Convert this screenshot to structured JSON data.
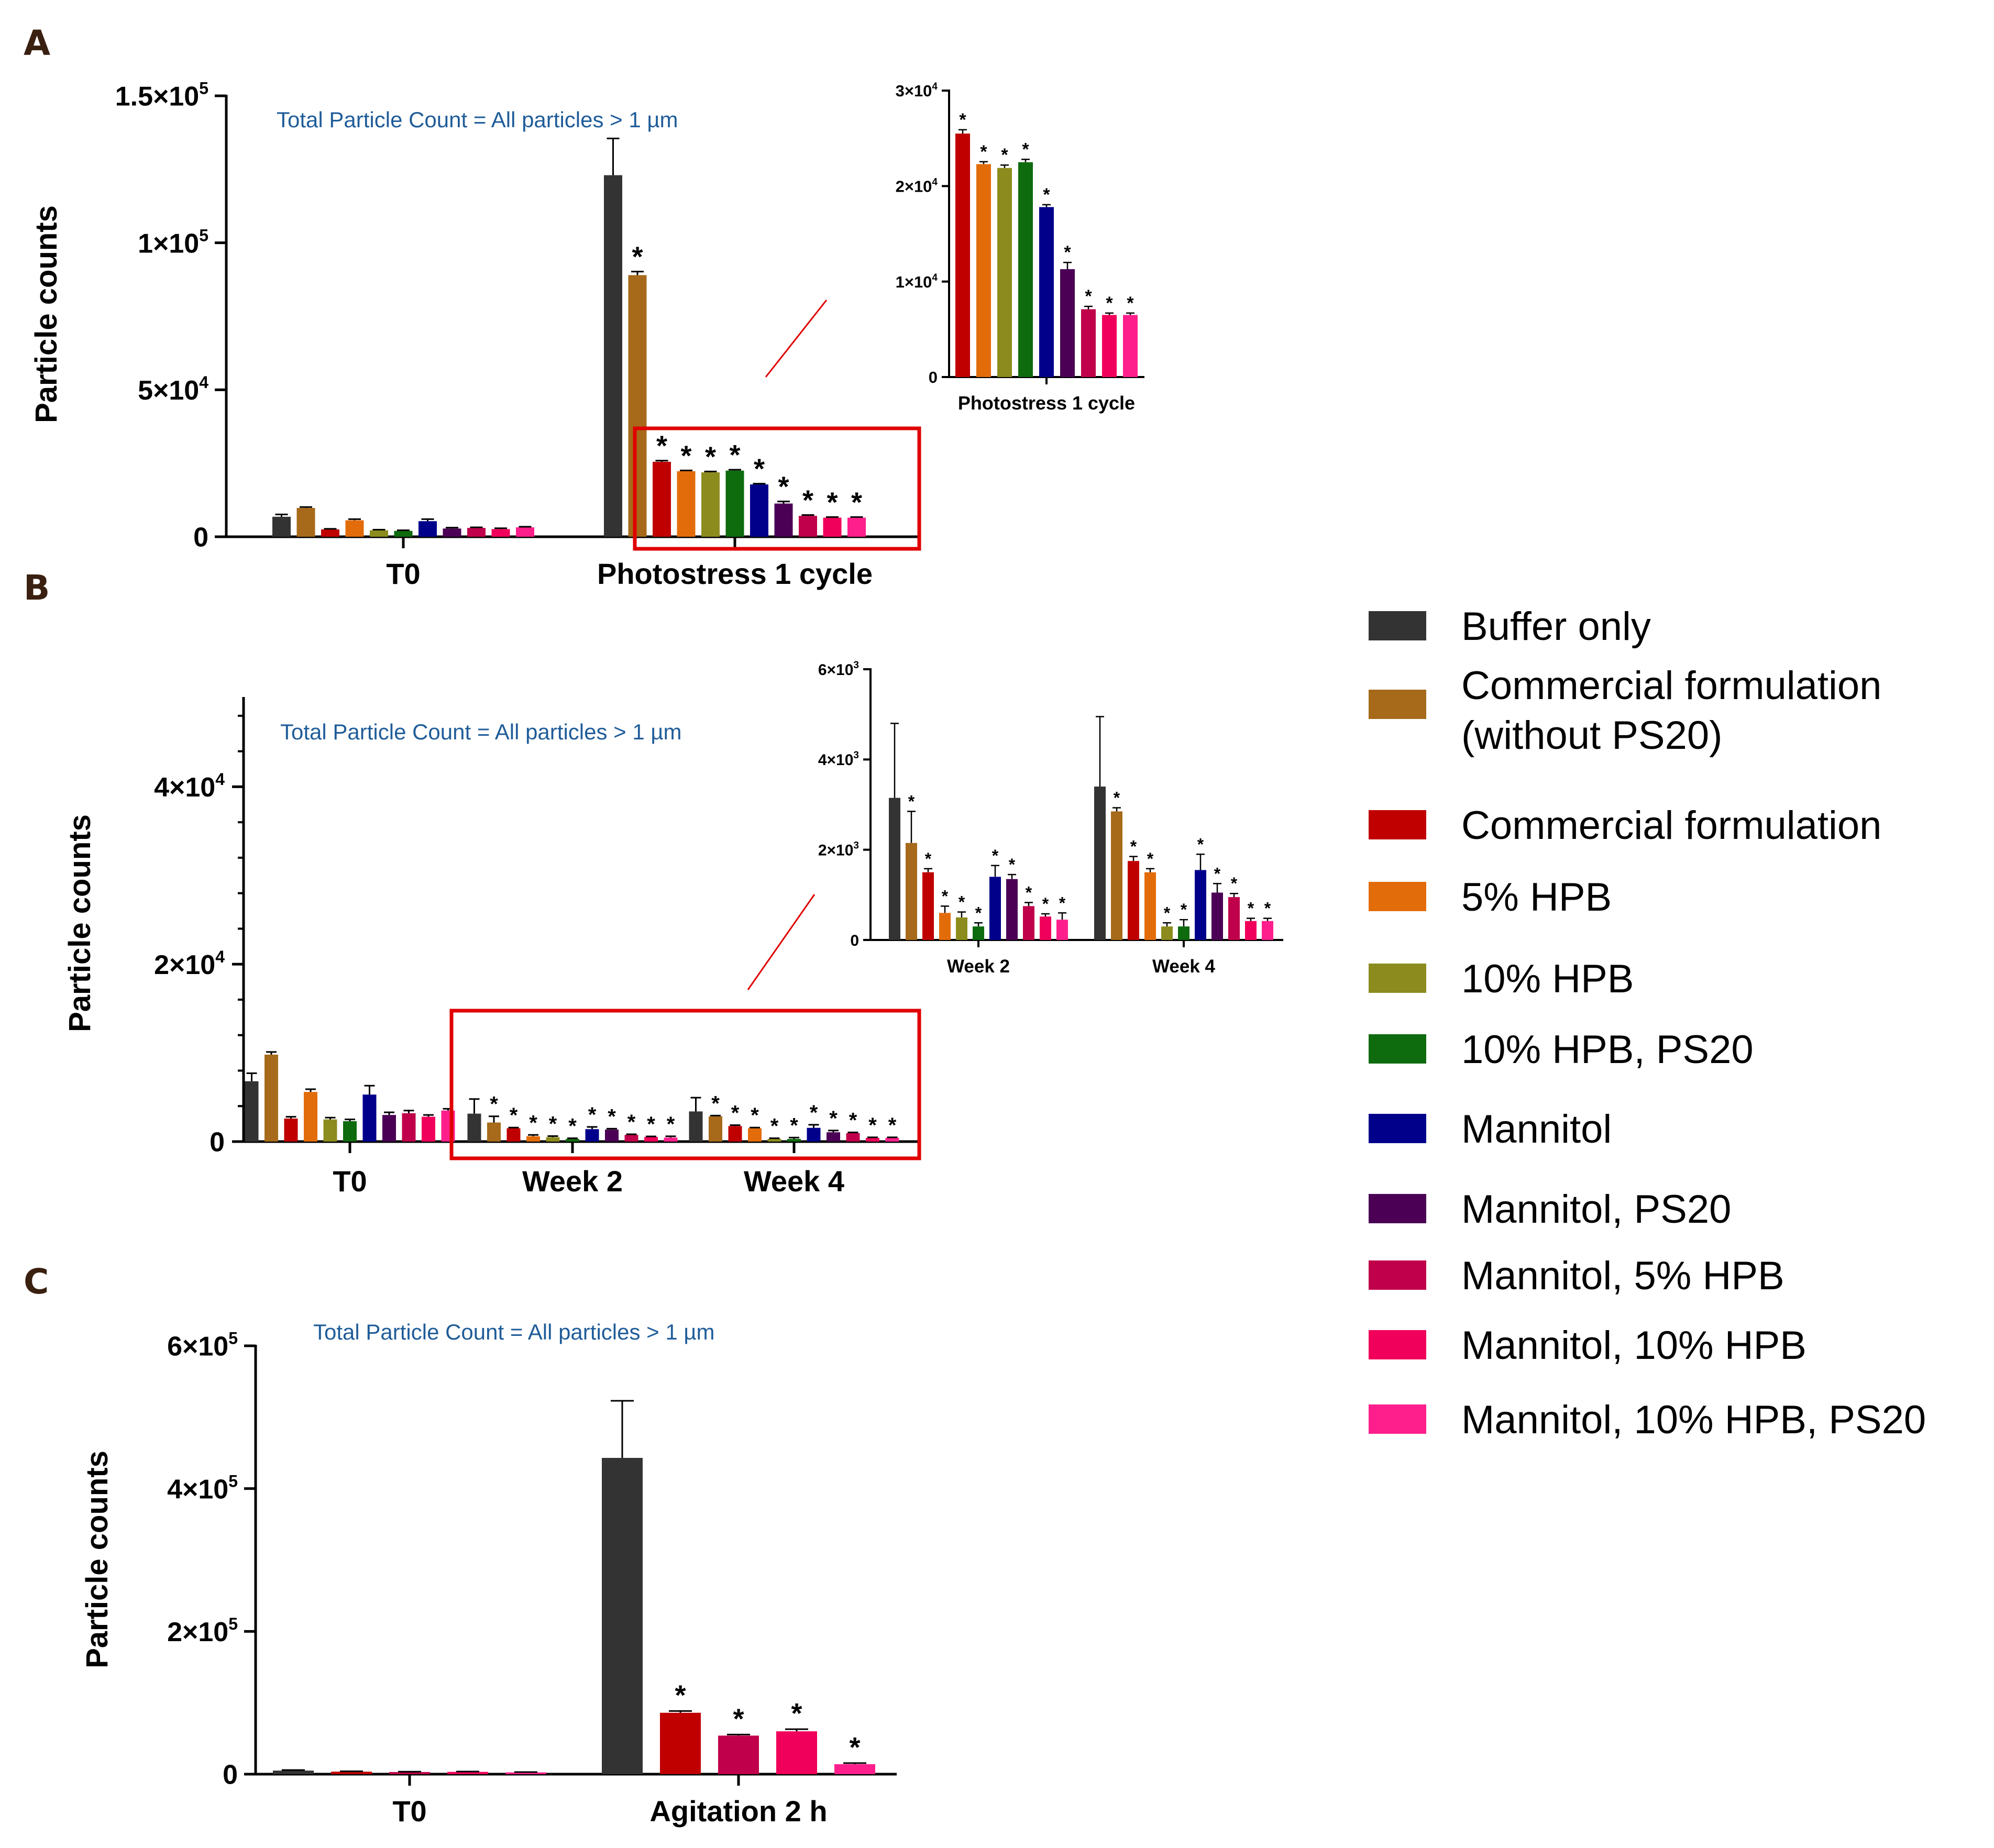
{
  "figure": {
    "panel_letters": [
      "A",
      "B",
      "C"
    ],
    "superscript_digits": {
      "3": "3",
      "4": "4",
      "5": "5"
    },
    "legend": [
      {
        "label": "Buffer only",
        "color": "#333333"
      },
      {
        "label": "Commercial formulation",
        "label2": "(without PS20)",
        "color": "#A66A1A"
      },
      {
        "label": "Commercial formulation",
        "color": "#C00000"
      },
      {
        "label": "5% HPB",
        "color": "#E36C0A"
      },
      {
        "label": "10% HPB",
        "color": "#8C8C1E"
      },
      {
        "label": "10% HPB, PS20",
        "color": "#0E6B0E"
      },
      {
        "label": "Mannitol",
        "color": "#00008B"
      },
      {
        "label": "Mannitol, PS20",
        "color": "#4B0055"
      },
      {
        "label": "Mannitol, 5% HPB",
        "color": "#C0004A"
      },
      {
        "label": "Mannitol, 10% HPB",
        "color": "#F0005A"
      },
      {
        "label": "Mannitol, 10% HPB, PS20",
        "color": "#FF1F8C"
      }
    ],
    "highlight_color": "#E00000",
    "annotation_color": "#1F5C99"
  },
  "chart_data": [
    {
      "panel": "A",
      "type": "bar",
      "title": "",
      "annotation": "Total Particle Count = All particles > 1 µm",
      "ylabel": "Particle counts",
      "ylim": [
        0,
        150000
      ],
      "yticks": [
        {
          "value": 0,
          "mant": "0",
          "exp": ""
        },
        {
          "value": 50000,
          "mant": "5×10",
          "exp": "4"
        },
        {
          "value": 100000,
          "mant": "1×10",
          "exp": "5"
        },
        {
          "value": 150000,
          "mant": "1.5×10",
          "exp": "5"
        }
      ],
      "groups": [
        {
          "label": "T0",
          "series_idx": [
            0,
            1,
            2,
            3,
            4,
            5,
            6,
            7,
            8,
            9,
            10
          ],
          "values": [
            6800,
            9800,
            2500,
            5600,
            2200,
            2000,
            5300,
            2800,
            3000,
            2600,
            3200
          ],
          "errors": [
            800,
            300,
            200,
            400,
            200,
            200,
            700,
            300,
            200,
            300,
            200
          ],
          "stars": [
            false,
            false,
            false,
            false,
            false,
            false,
            false,
            false,
            false,
            false,
            false
          ]
        },
        {
          "label": "Photostress 1 cycle",
          "series_idx": [
            0,
            1,
            2,
            3,
            4,
            5,
            6,
            7,
            8,
            9,
            10
          ],
          "values": [
            123000,
            89000,
            25500,
            22300,
            21900,
            22500,
            17800,
            11300,
            7100,
            6500,
            6500
          ],
          "errors": [
            12500,
            1200,
            400,
            250,
            300,
            300,
            250,
            700,
            300,
            200,
            200
          ],
          "stars": [
            false,
            true,
            true,
            true,
            true,
            true,
            true,
            true,
            true,
            true,
            true
          ]
        }
      ],
      "inset": {
        "ylim": [
          0,
          30000
        ],
        "yticks": [
          {
            "value": 0,
            "mant": "0",
            "exp": ""
          },
          {
            "value": 10000,
            "mant": "1×10",
            "exp": "4"
          },
          {
            "value": 20000,
            "mant": "2×10",
            "exp": "4"
          },
          {
            "value": 30000,
            "mant": "3×10",
            "exp": "4"
          }
        ],
        "groups": [
          {
            "label": "Photostress 1 cycle",
            "series_idx": [
              2,
              3,
              4,
              5,
              6,
              7,
              8,
              9,
              10
            ],
            "values": [
              25500,
              22300,
              21900,
              22500,
              17800,
              11300,
              7100,
              6500,
              6500
            ],
            "errors": [
              400,
              250,
              300,
              300,
              250,
              700,
              300,
              200,
              200
            ],
            "stars": [
              true,
              true,
              true,
              true,
              true,
              true,
              true,
              true,
              true
            ]
          }
        ]
      }
    },
    {
      "panel": "B",
      "type": "bar",
      "title": "",
      "annotation": "Total Particle Count = All particles > 1 µm",
      "ylabel": "Particle counts",
      "ylim": [
        0,
        50000
      ],
      "yticks": [
        {
          "value": 0,
          "mant": "0",
          "exp": ""
        },
        {
          "value": 20000,
          "mant": "2×10",
          "exp": "4"
        },
        {
          "value": 40000,
          "mant": "4×10",
          "exp": "4"
        }
      ],
      "groups": [
        {
          "label": "T0",
          "series_idx": [
            0,
            1,
            2,
            3,
            4,
            5,
            6,
            7,
            8,
            9,
            10
          ],
          "values": [
            6800,
            9800,
            2600,
            5600,
            2500,
            2300,
            5300,
            3000,
            3200,
            2800,
            3500
          ],
          "errors": [
            900,
            300,
            200,
            300,
            200,
            200,
            1000,
            300,
            300,
            200,
            200
          ],
          "stars": [
            false,
            false,
            false,
            false,
            false,
            false,
            false,
            false,
            false,
            false,
            false
          ]
        },
        {
          "label": "Week 2",
          "series_idx": [
            0,
            1,
            2,
            3,
            4,
            5,
            6,
            7,
            8,
            9,
            10
          ],
          "values": [
            3150,
            2150,
            1500,
            600,
            500,
            300,
            1400,
            1350,
            750,
            520,
            450
          ],
          "errors": [
            1650,
            700,
            80,
            150,
            120,
            80,
            250,
            100,
            80,
            60,
            150
          ],
          "stars": [
            false,
            true,
            true,
            true,
            true,
            true,
            true,
            true,
            true,
            true,
            true
          ]
        },
        {
          "label": "Week 4",
          "series_idx": [
            0,
            1,
            2,
            3,
            4,
            5,
            6,
            7,
            8,
            9,
            10
          ],
          "values": [
            3400,
            2850,
            1750,
            1500,
            300,
            300,
            1550,
            1050,
            950,
            420,
            420
          ],
          "errors": [
            1550,
            80,
            100,
            80,
            80,
            150,
            350,
            200,
            80,
            60,
            60
          ],
          "stars": [
            false,
            true,
            true,
            true,
            true,
            true,
            true,
            true,
            true,
            true,
            true
          ]
        }
      ],
      "inset": {
        "ylim": [
          0,
          6000
        ],
        "yticks": [
          {
            "value": 0,
            "mant": "0",
            "exp": ""
          },
          {
            "value": 2000,
            "mant": "2×10",
            "exp": "3"
          },
          {
            "value": 4000,
            "mant": "4×10",
            "exp": "3"
          },
          {
            "value": 6000,
            "mant": "6×10",
            "exp": "3"
          }
        ],
        "groups": [
          {
            "label": "Week 2",
            "series_idx": [
              0,
              1,
              2,
              3,
              4,
              5,
              6,
              7,
              8,
              9,
              10
            ],
            "values": [
              3150,
              2150,
              1500,
              600,
              500,
              300,
              1400,
              1350,
              750,
              520,
              450
            ],
            "errors": [
              1650,
              700,
              80,
              150,
              120,
              80,
              250,
              100,
              80,
              60,
              150
            ],
            "stars": [
              false,
              true,
              true,
              true,
              true,
              true,
              true,
              true,
              true,
              true,
              true
            ]
          },
          {
            "label": "Week 4",
            "series_idx": [
              0,
              1,
              2,
              3,
              4,
              5,
              6,
              7,
              8,
              9,
              10
            ],
            "values": [
              3400,
              2850,
              1750,
              1500,
              300,
              300,
              1550,
              1050,
              950,
              420,
              420
            ],
            "errors": [
              1550,
              80,
              100,
              80,
              80,
              150,
              350,
              200,
              80,
              60,
              60
            ],
            "stars": [
              false,
              true,
              true,
              true,
              true,
              true,
              true,
              true,
              true,
              true,
              true
            ]
          }
        ]
      }
    },
    {
      "panel": "C",
      "type": "bar",
      "title": "",
      "annotation": "Total Particle Count = All particles > 1 µm",
      "ylabel": "Particle counts",
      "ylim": [
        0,
        600000
      ],
      "yticks": [
        {
          "value": 0,
          "mant": "0",
          "exp": ""
        },
        {
          "value": 200000,
          "mant": "2×10",
          "exp": "5"
        },
        {
          "value": 400000,
          "mant": "4×10",
          "exp": "5"
        },
        {
          "value": 600000,
          "mant": "6×10",
          "exp": "5"
        }
      ],
      "groups": [
        {
          "label": "T0",
          "series_idx": [
            0,
            2,
            8,
            9,
            10
          ],
          "values": [
            5000,
            3500,
            3000,
            3200,
            2500
          ],
          "errors": [
            800,
            500,
            500,
            500,
            400
          ],
          "stars": [
            false,
            false,
            false,
            false,
            false
          ]
        },
        {
          "label": "Agitation 2 h",
          "series_idx": [
            0,
            2,
            8,
            9,
            10
          ],
          "values": [
            443000,
            86000,
            54000,
            60000,
            14000
          ],
          "errors": [
            80000,
            2500,
            1500,
            3000,
            1500
          ],
          "stars": [
            false,
            true,
            true,
            true,
            true
          ]
        }
      ]
    }
  ]
}
